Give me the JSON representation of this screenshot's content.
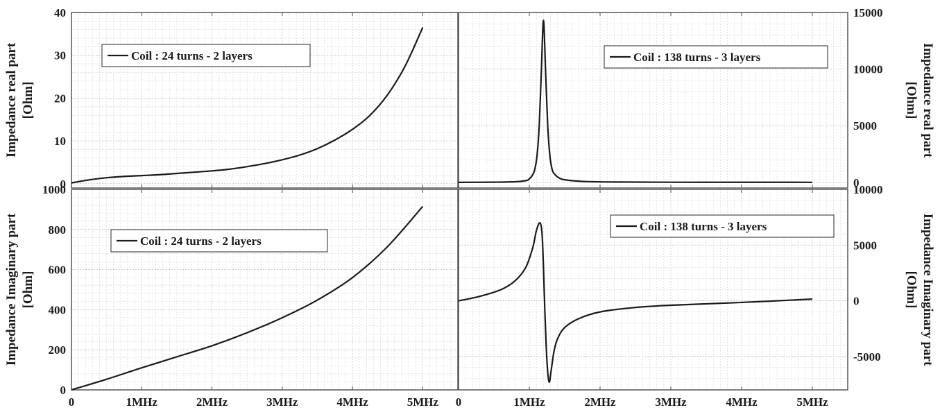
{
  "colors": {
    "line": "#1a1a1a",
    "grid_minor": "#d9d9d9",
    "grid_major": "#bdbdbd",
    "frame": "#4a4a4a",
    "background": "#ffffff"
  },
  "chart_data": [
    {
      "id": "top-left",
      "type": "line",
      "ylabel": [
        "Impedance real part",
        "[Ohm]"
      ],
      "ylabel_side": "left",
      "legend": "Coil : 24 turns - 2 layers",
      "legend_placement": "top-left",
      "xlim": [
        0,
        5.5
      ],
      "ylim": [
        -1,
        40
      ],
      "yticks": [
        0,
        10,
        20,
        30,
        40
      ],
      "ytick_labels": [
        "0",
        "10",
        "20",
        "30",
        "40"
      ],
      "xticks": [
        0,
        1,
        2,
        3,
        4,
        5
      ],
      "xtick_labels": [],
      "grid": true,
      "series": [
        {
          "x": [
            0,
            0.25,
            0.5,
            0.75,
            1.0,
            1.25,
            1.5,
            1.75,
            2.0,
            2.25,
            2.5,
            2.75,
            3.0,
            3.25,
            3.5,
            3.75,
            4.0,
            4.25,
            4.5,
            4.75,
            5.0
          ],
          "y": [
            0.2,
            0.9,
            1.4,
            1.7,
            1.9,
            2.1,
            2.4,
            2.7,
            3.0,
            3.4,
            4.0,
            4.7,
            5.6,
            6.7,
            8.2,
            10.2,
            12.7,
            16.0,
            20.8,
            27.5,
            36.5
          ]
        }
      ]
    },
    {
      "id": "top-right",
      "type": "line",
      "ylabel": [
        "Impedance real part",
        "[Ohm]"
      ],
      "ylabel_side": "right",
      "legend": "Coil : 138 turns - 3 layers",
      "legend_placement": "top-right",
      "xlim": [
        0,
        5.5
      ],
      "ylim": [
        -500,
        15000
      ],
      "yticks": [
        0,
        5000,
        10000,
        15000
      ],
      "ytick_labels": [
        "0",
        "5000",
        "10000",
        "15000"
      ],
      "xticks": [
        0,
        1,
        2,
        3,
        4,
        5
      ],
      "xtick_labels": [],
      "grid": true,
      "series": [
        {
          "x": [
            0,
            0.5,
            0.8,
            0.95,
            1.0,
            1.05,
            1.08,
            1.11,
            1.14,
            1.17,
            1.2,
            1.23,
            1.26,
            1.29,
            1.32,
            1.36,
            1.45,
            1.6,
            1.8,
            2.2,
            3.0,
            4.0,
            5.0
          ],
          "y": [
            0,
            15,
            50,
            150,
            300,
            700,
            1200,
            2400,
            5000,
            9800,
            14300,
            9800,
            5000,
            2400,
            1200,
            700,
            300,
            150,
            70,
            30,
            10,
            5,
            3
          ]
        }
      ]
    },
    {
      "id": "bottom-left",
      "type": "line",
      "ylabel": [
        "Impedance Imaginary part",
        "[Ohm]"
      ],
      "ylabel_side": "left",
      "legend": "Coil : 24 turns - 2 layers",
      "legend_placement": "top-left",
      "xlim": [
        0,
        5.5
      ],
      "ylim": [
        0,
        1000
      ],
      "yticks": [
        0,
        200,
        400,
        600,
        800,
        1000
      ],
      "ytick_labels": [
        "0",
        "200",
        "400",
        "600",
        "800",
        "1000"
      ],
      "xticks": [
        0,
        1,
        2,
        3,
        4,
        5
      ],
      "xtick_labels": [
        "0",
        "1MHz",
        "2MHz",
        "3MHz",
        "4MHz",
        "5MHz"
      ],
      "grid": true,
      "series": [
        {
          "x": [
            0,
            0.5,
            1.0,
            1.5,
            2.0,
            2.5,
            3.0,
            3.5,
            4.0,
            4.5,
            5.0
          ],
          "y": [
            0,
            53,
            110,
            165,
            220,
            285,
            360,
            448,
            560,
            715,
            915
          ]
        }
      ]
    },
    {
      "id": "bottom-right",
      "type": "line",
      "ylabel": [
        "Impedance Imaginary part",
        "[Ohm]"
      ],
      "ylabel_side": "right",
      "legend": "Coil : 138 turns - 3 layers",
      "legend_placement": "top-right",
      "xlim": [
        0,
        5.5
      ],
      "ylim": [
        -8000,
        10000
      ],
      "yticks": [
        -5000,
        0,
        5000,
        10000
      ],
      "ytick_labels": [
        "-5000",
        "0",
        "5000",
        "10000"
      ],
      "xticks": [
        0,
        1,
        2,
        3,
        4,
        5
      ],
      "xtick_labels": [
        "0",
        "1MHz",
        "2MHz",
        "3MHz",
        "4MHz",
        "5MHz"
      ],
      "grid": true,
      "series": [
        {
          "x": [
            0,
            0.3,
            0.6,
            0.8,
            0.95,
            1.05,
            1.1,
            1.15,
            1.18,
            1.2,
            1.22,
            1.25,
            1.28,
            1.31,
            1.35,
            1.4,
            1.5,
            1.7,
            2.0,
            2.5,
            3.0,
            4.0,
            5.0
          ],
          "y": [
            0,
            400,
            1000,
            1800,
            3000,
            4800,
            6300,
            7000,
            6000,
            3000,
            -1000,
            -5500,
            -7300,
            -6200,
            -4500,
            -3400,
            -2400,
            -1600,
            -1000,
            -600,
            -400,
            -150,
            150
          ]
        }
      ]
    }
  ]
}
